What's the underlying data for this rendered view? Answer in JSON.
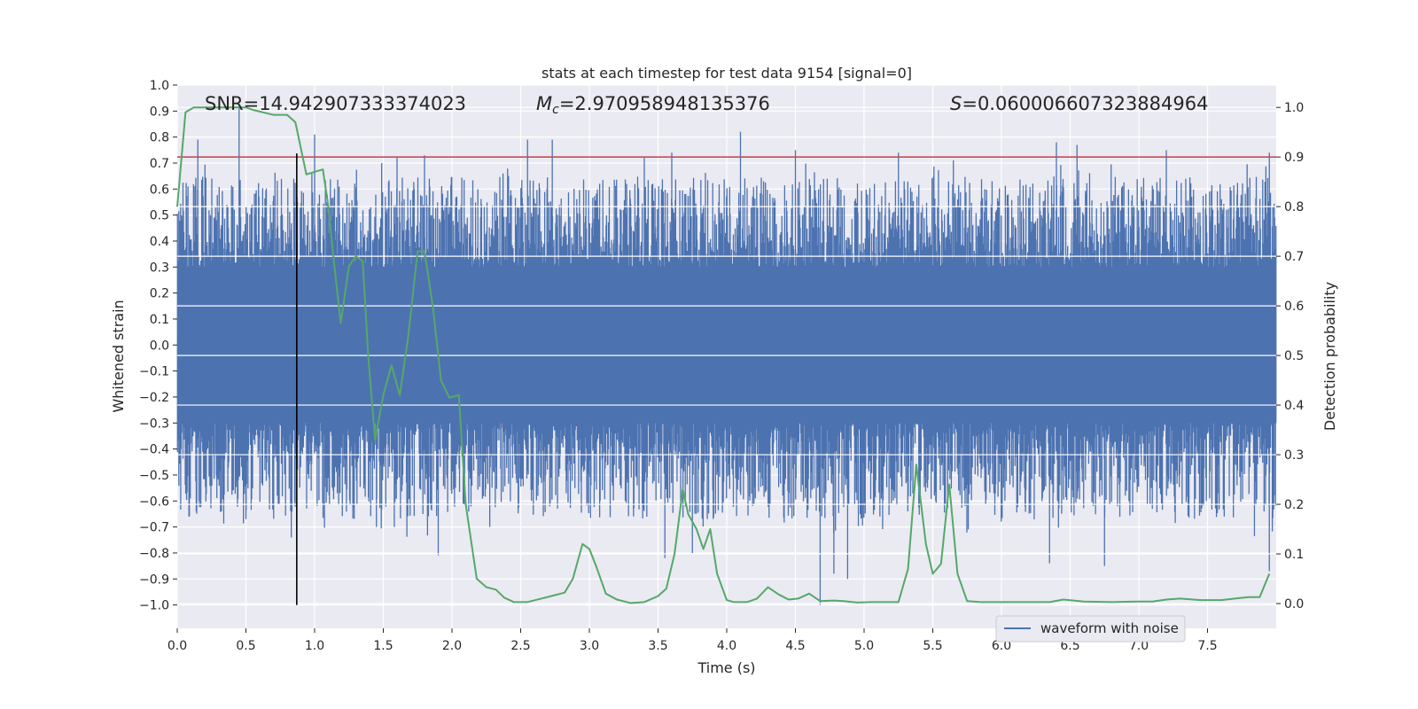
{
  "chart_data": {
    "type": "line",
    "title": "stats at each timestep for test data 9154 [signal=0]",
    "xlabel": "Time (s)",
    "ylabel_left": "Whitened strain",
    "ylabel_right": "Detection probability",
    "xlim": [
      0,
      8
    ],
    "ylim_left": [
      -1.09,
      1.0
    ],
    "ylim_right": [
      -0.05,
      1.045
    ],
    "x_ticks": [
      "0.0",
      "0.5",
      "1.0",
      "1.5",
      "2.0",
      "2.5",
      "3.0",
      "3.5",
      "4.0",
      "4.5",
      "5.0",
      "5.5",
      "6.0",
      "6.5",
      "7.0",
      "7.5"
    ],
    "y_ticks_left": [
      "1.0",
      "0.9",
      "0.8",
      "0.7",
      "0.6",
      "0.5",
      "0.4",
      "0.3",
      "0.2",
      "0.1",
      "0.0",
      "−0.1",
      "−0.2",
      "−0.3",
      "−0.4",
      "−0.5",
      "−0.6",
      "−0.7",
      "−0.8",
      "−0.9",
      "−1.0"
    ],
    "y_ticks_right": [
      "1.0",
      "0.9",
      "0.8",
      "0.7",
      "0.6",
      "0.5",
      "0.4",
      "0.3",
      "0.2",
      "0.1",
      "0.0"
    ],
    "grid": true,
    "legend": {
      "position": "bottom-right",
      "entries": [
        "waveform with noise"
      ]
    },
    "annotations": {
      "snr": "SNR=14.942907333374023",
      "mc": "=2.970958948135376",
      "mc_symbol": "M",
      "mc_subscript": "c",
      "s": "=0.060006607323884964",
      "s_symbol": "S"
    },
    "threshold": {
      "axis": "right",
      "value": 0.9,
      "color": "#c44e52"
    },
    "vertical_marker": {
      "x": 0.87,
      "y_from": -1.0,
      "y_to": 0.9,
      "color": "#000000"
    },
    "series": [
      {
        "name": "waveform with noise",
        "axis": "left",
        "color": "#4c72b0",
        "envelope": {
          "core": 0.3,
          "typical": 0.45,
          "peak_max": 0.92,
          "trough_min": -1.0
        },
        "peaks": [
          {
            "x": 0.15,
            "y": 0.79
          },
          {
            "x": 0.45,
            "y": 0.92
          },
          {
            "x": 0.98,
            "y": 0.66
          },
          {
            "x": 1.0,
            "y": 0.81
          },
          {
            "x": 1.6,
            "y": 0.72
          },
          {
            "x": 1.8,
            "y": 0.73
          },
          {
            "x": 2.55,
            "y": 0.79
          },
          {
            "x": 2.73,
            "y": 0.79
          },
          {
            "x": 3.4,
            "y": 0.72
          },
          {
            "x": 3.6,
            "y": 0.74
          },
          {
            "x": 4.1,
            "y": 0.82
          },
          {
            "x": 4.5,
            "y": 0.75
          },
          {
            "x": 5.25,
            "y": 0.74
          },
          {
            "x": 5.65,
            "y": 0.71
          },
          {
            "x": 6.4,
            "y": 0.78
          },
          {
            "x": 6.55,
            "y": 0.77
          },
          {
            "x": 7.2,
            "y": 0.75
          },
          {
            "x": 7.95,
            "y": 0.74
          }
        ],
        "troughs": [
          {
            "x": 0.5,
            "y": -0.67
          },
          {
            "x": 0.83,
            "y": -0.74
          },
          {
            "x": 1.45,
            "y": -0.7
          },
          {
            "x": 1.58,
            "y": -0.7
          },
          {
            "x": 1.9,
            "y": -0.81
          },
          {
            "x": 3.55,
            "y": -0.82
          },
          {
            "x": 3.75,
            "y": -0.8
          },
          {
            "x": 4.68,
            "y": -1.0
          },
          {
            "x": 4.78,
            "y": -0.88
          },
          {
            "x": 4.88,
            "y": -0.9
          },
          {
            "x": 6.35,
            "y": -0.84
          },
          {
            "x": 6.75,
            "y": -0.85
          },
          {
            "x": 7.95,
            "y": -0.87
          }
        ]
      },
      {
        "name": "",
        "axis": "right",
        "color": "#55a868",
        "x": [
          0.0,
          0.06,
          0.12,
          0.3,
          0.5,
          0.55,
          0.7,
          0.8,
          0.86,
          0.94,
          1.0,
          1.06,
          1.1,
          1.14,
          1.19,
          1.25,
          1.3,
          1.35,
          1.39,
          1.44,
          1.5,
          1.56,
          1.62,
          1.68,
          1.75,
          1.8,
          1.86,
          1.92,
          1.98,
          2.05,
          2.1,
          2.18,
          2.25,
          2.32,
          2.38,
          2.45,
          2.55,
          2.65,
          2.75,
          2.82,
          2.88,
          2.95,
          3.0,
          3.05,
          3.12,
          3.2,
          3.3,
          3.4,
          3.5,
          3.56,
          3.62,
          3.68,
          3.72,
          3.78,
          3.83,
          3.88,
          3.93,
          4.0,
          4.05,
          4.15,
          4.22,
          4.3,
          4.38,
          4.45,
          4.52,
          4.6,
          4.68,
          4.78,
          4.85,
          4.95,
          5.05,
          5.15,
          5.25,
          5.32,
          5.38,
          5.45,
          5.5,
          5.56,
          5.62,
          5.68,
          5.75,
          5.85,
          6.0,
          6.2,
          6.35,
          6.45,
          6.6,
          6.8,
          7.0,
          7.1,
          7.2,
          7.3,
          7.45,
          7.6,
          7.8,
          7.88,
          7.95
        ],
        "y": [
          0.8,
          0.99,
          1.0,
          1.0,
          1.0,
          0.995,
          0.985,
          0.985,
          0.97,
          0.865,
          0.87,
          0.875,
          0.8,
          0.69,
          0.565,
          0.68,
          0.7,
          0.69,
          0.5,
          0.33,
          0.42,
          0.48,
          0.42,
          0.535,
          0.71,
          0.71,
          0.6,
          0.45,
          0.415,
          0.42,
          0.2,
          0.05,
          0.033,
          0.028,
          0.012,
          0.003,
          0.003,
          0.01,
          0.017,
          0.022,
          0.05,
          0.12,
          0.11,
          0.075,
          0.02,
          0.008,
          0.001,
          0.003,
          0.015,
          0.03,
          0.1,
          0.23,
          0.18,
          0.15,
          0.11,
          0.15,
          0.06,
          0.007,
          0.003,
          0.003,
          0.01,
          0.033,
          0.018,
          0.008,
          0.01,
          0.02,
          0.005,
          0.006,
          0.005,
          0.002,
          0.003,
          0.003,
          0.003,
          0.07,
          0.28,
          0.12,
          0.06,
          0.08,
          0.24,
          0.06,
          0.005,
          0.003,
          0.003,
          0.003,
          0.003,
          0.008,
          0.004,
          0.003,
          0.004,
          0.004,
          0.008,
          0.01,
          0.007,
          0.007,
          0.013,
          0.013,
          0.06
        ]
      }
    ]
  }
}
